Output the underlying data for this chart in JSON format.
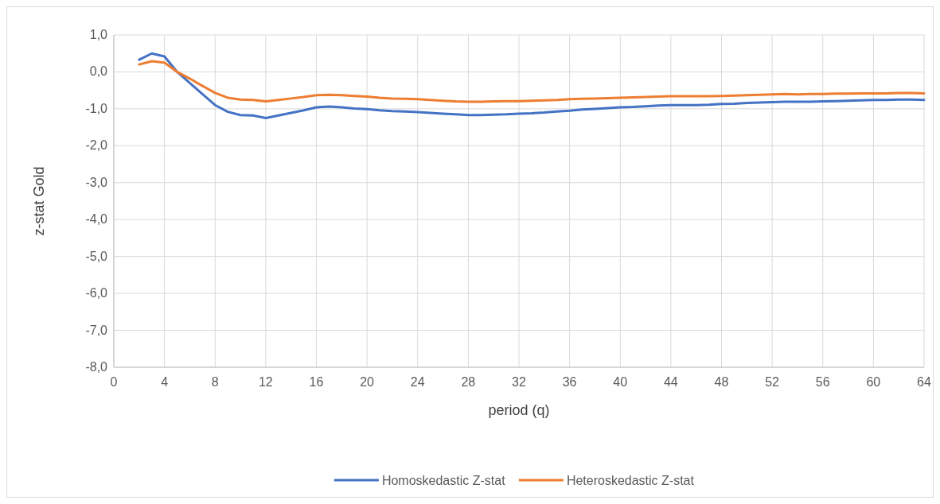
{
  "chart_data": {
    "type": "line",
    "xlabel": "period (q)",
    "ylabel": "z-stat Gold",
    "xlim": [
      0,
      64
    ],
    "xticks": [
      0,
      4,
      8,
      12,
      16,
      20,
      24,
      28,
      32,
      36,
      40,
      44,
      48,
      52,
      56,
      60,
      64
    ],
    "ylim": [
      -8,
      1
    ],
    "yticks": [
      {
        "value": 1,
        "label": "1,0"
      },
      {
        "value": 0,
        "label": "0,0"
      },
      {
        "value": -1,
        "label": "-1,0"
      },
      {
        "value": -2,
        "label": "-2,0"
      },
      {
        "value": -3,
        "label": "-3,0"
      },
      {
        "value": -4,
        "label": "-4,0"
      },
      {
        "value": -5,
        "label": "-5,0"
      },
      {
        "value": -6,
        "label": "-6,0"
      },
      {
        "value": -7,
        "label": "-7,0"
      },
      {
        "value": -8,
        "label": "-8,0"
      }
    ],
    "grid": true,
    "legend": "bottom",
    "marker": "none",
    "line_style": "solid",
    "x": [
      2,
      3,
      4,
      5,
      6,
      7,
      8,
      9,
      10,
      11,
      12,
      13,
      14,
      15,
      16,
      17,
      18,
      19,
      20,
      21,
      22,
      23,
      24,
      25,
      26,
      27,
      28,
      29,
      30,
      31,
      32,
      33,
      34,
      35,
      36,
      37,
      38,
      39,
      40,
      41,
      42,
      43,
      44,
      45,
      46,
      47,
      48,
      49,
      50,
      51,
      52,
      53,
      54,
      55,
      56,
      57,
      58,
      59,
      60,
      61,
      62,
      63,
      64
    ],
    "series": [
      {
        "name": "Homoskedastic Z-stat",
        "color": "#4472c4",
        "values": [
          0.33,
          0.5,
          0.42,
          0.0,
          -0.3,
          -0.6,
          -0.9,
          -1.08,
          -1.17,
          -1.18,
          -1.25,
          -1.18,
          -1.11,
          -1.04,
          -0.96,
          -0.94,
          -0.96,
          -0.99,
          -1.01,
          -1.04,
          -1.06,
          -1.07,
          -1.09,
          -1.11,
          -1.13,
          -1.15,
          -1.17,
          -1.17,
          -1.16,
          -1.15,
          -1.13,
          -1.12,
          -1.1,
          -1.07,
          -1.05,
          -1.02,
          -1.0,
          -0.98,
          -0.96,
          -0.95,
          -0.93,
          -0.91,
          -0.9,
          -0.9,
          -0.9,
          -0.89,
          -0.87,
          -0.86,
          -0.84,
          -0.83,
          -0.82,
          -0.81,
          -0.81,
          -0.81,
          -0.8,
          -0.79,
          -0.78,
          -0.77,
          -0.76,
          -0.76,
          -0.75,
          -0.75,
          -0.76
        ]
      },
      {
        "name": "Heteroskedastic Z-stat",
        "color": "#ed7d31",
        "values": [
          0.2,
          0.29,
          0.25,
          0.0,
          -0.18,
          -0.38,
          -0.57,
          -0.7,
          -0.75,
          -0.76,
          -0.8,
          -0.76,
          -0.72,
          -0.68,
          -0.63,
          -0.62,
          -0.63,
          -0.65,
          -0.67,
          -0.7,
          -0.72,
          -0.73,
          -0.74,
          -0.76,
          -0.78,
          -0.8,
          -0.81,
          -0.81,
          -0.8,
          -0.79,
          -0.79,
          -0.78,
          -0.77,
          -0.76,
          -0.74,
          -0.73,
          -0.72,
          -0.71,
          -0.7,
          -0.69,
          -0.68,
          -0.67,
          -0.66,
          -0.66,
          -0.66,
          -0.66,
          -0.65,
          -0.64,
          -0.63,
          -0.62,
          -0.61,
          -0.6,
          -0.61,
          -0.6,
          -0.6,
          -0.59,
          -0.59,
          -0.58,
          -0.58,
          -0.58,
          -0.57,
          -0.57,
          -0.58
        ]
      }
    ]
  }
}
